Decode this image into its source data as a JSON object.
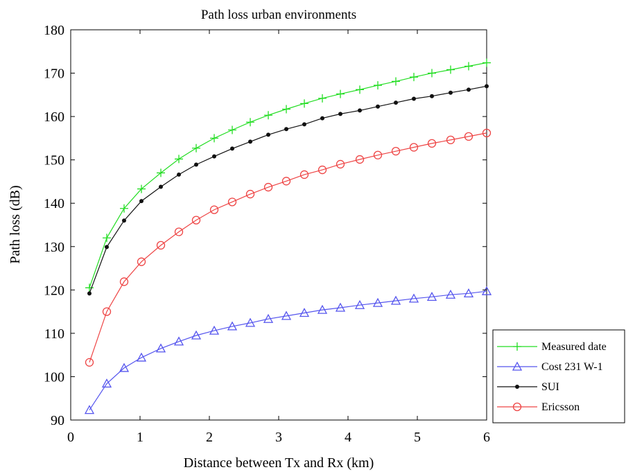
{
  "chart_data": {
    "type": "line",
    "title": "Path loss urban environments",
    "xlabel": "Distance between Tx and Rx (km)",
    "ylabel": "Path loss (dB)",
    "xlim": [
      0,
      6
    ],
    "ylim": [
      90,
      180
    ],
    "xticks": [
      0,
      1,
      2,
      3,
      4,
      5,
      6
    ],
    "yticks": [
      90,
      100,
      110,
      120,
      130,
      140,
      150,
      160,
      170,
      180
    ],
    "grid": false,
    "legend_position": "bottom-right, outside plot",
    "x": [
      0.27,
      0.52,
      0.77,
      1.02,
      1.3,
      1.56,
      1.81,
      2.07,
      2.33,
      2.59,
      2.85,
      3.11,
      3.37,
      3.63,
      3.89,
      4.17,
      4.43,
      4.69,
      4.95,
      5.21,
      5.48,
      5.74,
      6.0
    ],
    "series": [
      {
        "name": "Measured date",
        "color": "#22dd22",
        "marker": "plus",
        "values": [
          120.5,
          132.0,
          138.8,
          143.3,
          147.0,
          150.2,
          152.7,
          155.0,
          156.9,
          158.7,
          160.3,
          161.7,
          163.0,
          164.2,
          165.2,
          166.2,
          167.2,
          168.1,
          169.1,
          170.0,
          170.8,
          171.6,
          172.4
        ]
      },
      {
        "name": "Cost 231 W-1",
        "color": "#5555ee",
        "marker": "triangle",
        "values": [
          92.3,
          98.4,
          102.0,
          104.4,
          106.5,
          108.1,
          109.5,
          110.6,
          111.6,
          112.4,
          113.3,
          114.0,
          114.7,
          115.4,
          115.9,
          116.5,
          117.0,
          117.5,
          118.0,
          118.4,
          118.9,
          119.2,
          119.7
        ]
      },
      {
        "name": "SUI",
        "color": "#111111",
        "marker": "dot",
        "values": [
          119.2,
          129.9,
          136.0,
          140.5,
          143.8,
          146.6,
          148.9,
          150.8,
          152.6,
          154.2,
          155.8,
          157.1,
          158.2,
          159.6,
          160.6,
          161.4,
          162.3,
          163.2,
          164.1,
          164.7,
          165.5,
          166.2,
          167.0
        ]
      },
      {
        "name": "Ericsson",
        "color": "#ee4444",
        "marker": "circle",
        "values": [
          103.3,
          115.0,
          121.9,
          126.5,
          130.3,
          133.4,
          136.1,
          138.5,
          140.3,
          142.1,
          143.7,
          145.1,
          146.6,
          147.7,
          149.0,
          150.1,
          151.1,
          152.0,
          152.9,
          153.8,
          154.6,
          155.4,
          156.2
        ]
      }
    ]
  }
}
